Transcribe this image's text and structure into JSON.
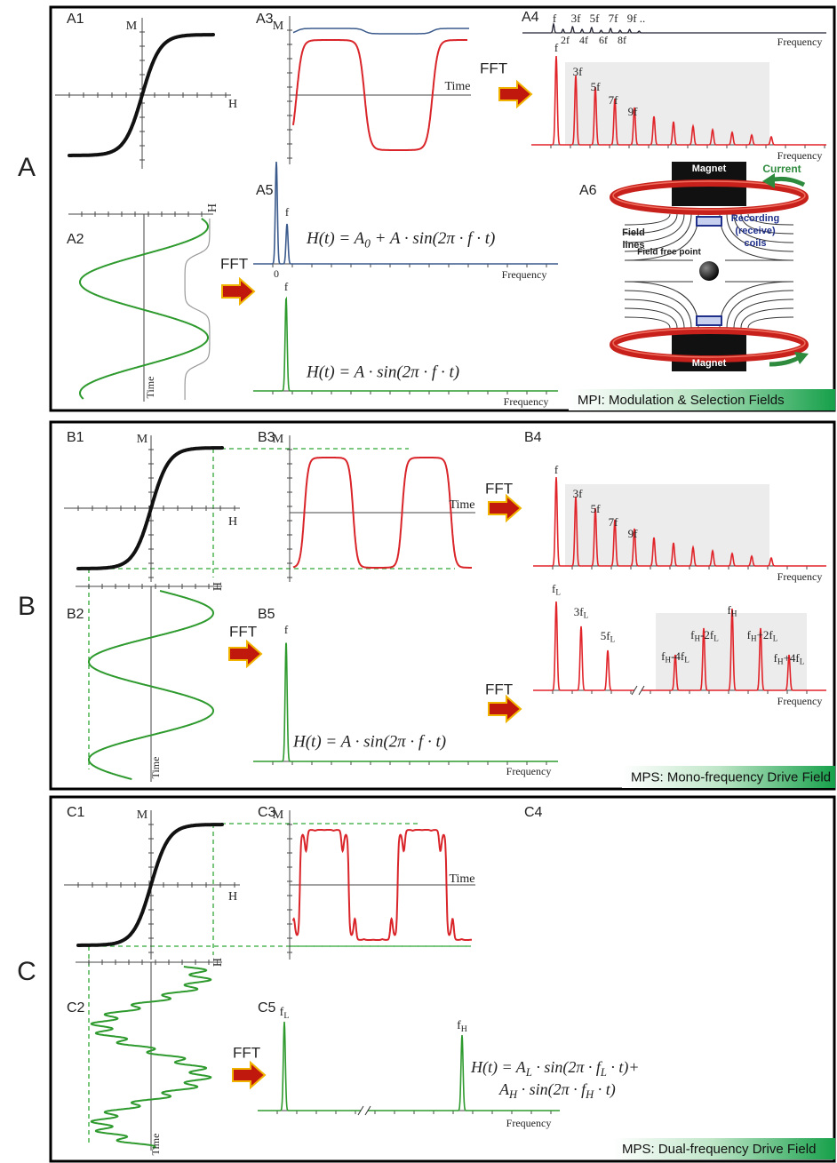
{
  "panel_a": {
    "letter": "A",
    "sublabels": [
      "A1",
      "A2",
      "A3",
      "A4",
      "A5",
      "A6"
    ],
    "a1_axes": [
      "M",
      "H"
    ],
    "a2_axes": [
      "H",
      "Time"
    ],
    "a3_axes": [
      "M",
      "Time"
    ],
    "fft": [
      "FFT",
      "FFT"
    ],
    "a4_inset_odd": [
      "f",
      "3f",
      "5f",
      "7f",
      "9f .."
    ],
    "a4_inset_even": [
      "2f",
      "4f",
      "6f",
      "8f"
    ],
    "a4_inset_axis": "Frequency",
    "a4_peaks": [
      "f",
      "3f",
      "5f",
      "7f",
      "9f"
    ],
    "a4_axis": "Frequency",
    "a5_peaks": [
      "0",
      "f"
    ],
    "a5_formula": [
      "H(t) = A",
      "0",
      " + A · sin(2π · f · t)"
    ],
    "a5_axis": "Frequency",
    "drive_peak": "f",
    "drive_formula": "H(t) = A · sin(2π · f · t)",
    "drive_axis": "Frequency",
    "a6": {
      "magnets": [
        "Magnet",
        "Magnet"
      ],
      "current": "Current",
      "coils": [
        "Recording",
        "(receive)",
        "coils"
      ],
      "field_lines": [
        "Field",
        "lines"
      ],
      "field_free_point": "Field free point"
    },
    "footer": "MPI: Modulation & Selection Fields"
  },
  "panel_b": {
    "letter": "B",
    "sublabels": [
      "B1",
      "B2",
      "B3",
      "B4",
      "B5"
    ],
    "b1_axes": [
      "M",
      "H"
    ],
    "b2_axes": [
      "H",
      "Time"
    ],
    "b3_axes": [
      "M",
      "Time"
    ],
    "fft": [
      "FFT",
      "FFT"
    ],
    "b4_peaks": [
      "f",
      "3f",
      "5f",
      "7f",
      "9f"
    ],
    "b4_axis": "Frequency",
    "b5_peak": "f",
    "b5_formula": "H(t) = A · sin(2π · f · t)",
    "b5_axis": "Frequency",
    "footer": "MPS: Mono-frequency Drive Field"
  },
  "panel_c": {
    "letter": "C",
    "sublabels": [
      "C1",
      "C2",
      "C3",
      "C4",
      "C5"
    ],
    "c1_axes": [
      "M",
      "H"
    ],
    "c2_axes": [
      "H",
      "Time"
    ],
    "c3_axes": [
      "M",
      "Time"
    ],
    "fft": [
      "FFT",
      "FFT"
    ],
    "c4_peaks": [
      [
        "f",
        "L"
      ],
      [
        "3f",
        "L"
      ],
      [
        "5f",
        "L"
      ],
      [
        "f",
        "H",
        "-4f",
        "L"
      ],
      [
        "f",
        "H",
        "-2f",
        "L"
      ],
      [
        "f",
        "H"
      ],
      [
        "f",
        "H",
        "+2f",
        "L"
      ],
      [
        "f",
        "H",
        "+4f",
        "L"
      ]
    ],
    "c4_axis": "Frequency",
    "c5_peaks": [
      [
        "f",
        "L"
      ],
      [
        "f",
        "H"
      ]
    ],
    "c5_formula": [
      [
        "H(t) = A",
        "L",
        " · sin(2π · f",
        "L",
        " · t)+"
      ],
      [
        "A",
        "H",
        " · sin(2π · f",
        "H",
        " · t)"
      ]
    ],
    "c5_axis": "Frequency",
    "footer": "MPS: Dual-frequency Drive Field"
  }
}
